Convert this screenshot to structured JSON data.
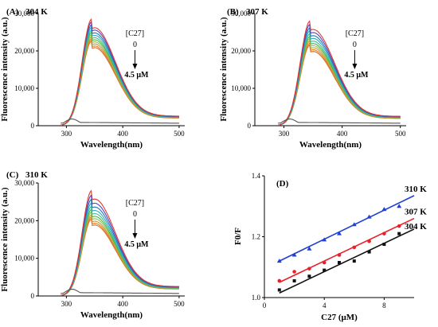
{
  "colors": {
    "spectra": [
      "#e03c31",
      "#5c3fbf",
      "#1f78b4",
      "#33a6c9",
      "#3fbf8f",
      "#4caf50",
      "#8bc34a",
      "#c49a3a",
      "#e67e22",
      "#d4702a"
    ],
    "blank": "#555555",
    "sv_310": "#1f3fd6",
    "sv_307": "#e8202a",
    "sv_304": "#111111"
  },
  "chart_data": [
    {
      "type": "line",
      "panel_label": "(A)",
      "temperature": "304 K",
      "xlabel": "Wavelength(nm)",
      "ylabel": "Fluorescence intensity (a.u.)",
      "xlim": [
        250,
        510
      ],
      "ylim": [
        0,
        30000
      ],
      "xticks": [
        "300",
        "400",
        "500"
      ],
      "yticks": [
        "0",
        "10,000",
        "20,000",
        "30,000"
      ],
      "annotation": {
        "title": "[C27]",
        "start": "0",
        "end": "4.5 μM"
      },
      "peaks": [
        28500,
        27800,
        27000,
        26300,
        25600,
        25000,
        24400,
        23800,
        23200,
        22700
      ],
      "blank_peak": 1800
    },
    {
      "type": "line",
      "panel_label": "(B)",
      "temperature": "307 K",
      "xlabel": "Wavelength(nm)",
      "ylabel": "Fluorescence intensity (a.u.)",
      "xlim": [
        250,
        510
      ],
      "ylim": [
        0,
        30000
      ],
      "xticks": [
        "300",
        "400",
        "500"
      ],
      "yticks": [
        "0",
        "10,000",
        "20,000",
        "30,000"
      ],
      "annotation": {
        "title": "[C27]",
        "start": "0",
        "end": "4.5 μM"
      },
      "peaks": [
        28000,
        27100,
        26200,
        25400,
        24600,
        23900,
        23300,
        22700,
        22100,
        21600
      ],
      "blank_peak": 1800
    },
    {
      "type": "line",
      "panel_label": "(C)",
      "temperature": "310 K",
      "xlabel": "Wavelength(nm)",
      "ylabel": "Fluorescence intensity (a.u.)",
      "xlim": [
        250,
        510
      ],
      "ylim": [
        0,
        30000
      ],
      "xticks": [
        "300",
        "400",
        "500"
      ],
      "yticks": [
        "0",
        "10,000",
        "20,000",
        "30,000"
      ],
      "annotation": {
        "title": "[C27]",
        "start": "0",
        "end": "4.5 μM"
      },
      "peaks": [
        28000,
        26800,
        25700,
        24700,
        23800,
        23000,
        22300,
        21600,
        21000,
        20500
      ],
      "blank_peak": 1800
    },
    {
      "type": "scatter",
      "panel_label": "(D)",
      "xlabel": "C27 (μM)",
      "ylabel": "F0/F",
      "xlim": [
        0,
        10
      ],
      "ylim": [
        1.0,
        1.4
      ],
      "xticks": [
        "0",
        "4",
        "8"
      ],
      "yticks": [
        "1.0",
        "1.2",
        "1.4"
      ],
      "series": [
        {
          "name": "310 K",
          "marker": "triangle",
          "x": [
            1,
            2,
            3,
            4,
            5,
            6,
            7,
            8,
            9
          ],
          "y": [
            1.12,
            1.14,
            1.16,
            1.19,
            1.21,
            1.24,
            1.265,
            1.29,
            1.3
          ],
          "fit": [
            1.12,
            1.335
          ]
        },
        {
          "name": "307 K",
          "marker": "circle",
          "x": [
            1,
            2,
            3,
            4,
            5,
            6,
            7,
            8,
            9
          ],
          "y": [
            1.055,
            1.085,
            1.095,
            1.115,
            1.14,
            1.165,
            1.185,
            1.21,
            1.235
          ],
          "fit": [
            1.05,
            1.26
          ]
        },
        {
          "name": "304 K",
          "marker": "square",
          "x": [
            1,
            2,
            3,
            4,
            5,
            6,
            7,
            8,
            9
          ],
          "y": [
            1.025,
            1.055,
            1.07,
            1.09,
            1.115,
            1.12,
            1.15,
            1.175,
            1.21
          ],
          "fit": [
            1.015,
            1.225
          ]
        }
      ]
    }
  ]
}
